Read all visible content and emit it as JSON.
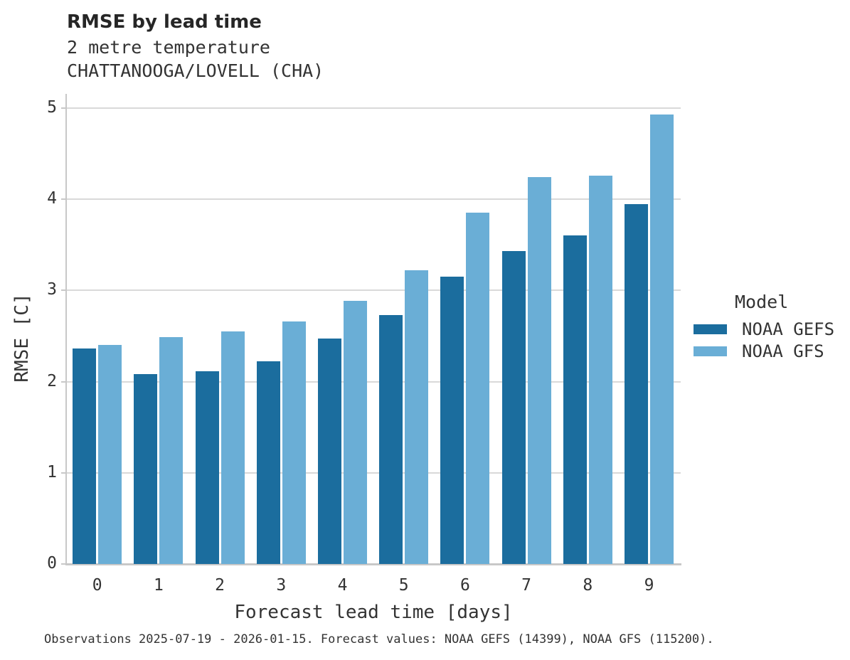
{
  "header": {
    "title": "RMSE by lead time",
    "subtitle1": "2 metre temperature",
    "subtitle2": "CHATTANOOGA/LOVELL (CHA)"
  },
  "footer": {
    "note": "Observations 2025-07-19 - 2026-01-15. Forecast values: NOAA GEFS (14399), NOAA GFS (115200)."
  },
  "legend": {
    "title": "Model",
    "entries": [
      {
        "label": "NOAA GEFS",
        "color": "#1b6d9e"
      },
      {
        "label": "NOAA GFS",
        "color": "#6aaed6"
      }
    ]
  },
  "colors": {
    "gefs_bar": "#1b6d9e",
    "gfs_bar": "#6aaed6",
    "gridline": "#d9d9d9",
    "axis": "#c8c8c8",
    "text": "#333333"
  },
  "chart_data": {
    "type": "bar",
    "title": "RMSE by lead time",
    "subtitle": [
      "2 metre temperature",
      "CHATTANOOGA/LOVELL (CHA)"
    ],
    "categories": [
      "0",
      "1",
      "2",
      "3",
      "4",
      "5",
      "6",
      "7",
      "8",
      "9"
    ],
    "series": [
      {
        "name": "NOAA GEFS",
        "color": "#1b6d9e",
        "values": [
          2.36,
          2.08,
          2.11,
          2.22,
          2.47,
          2.73,
          3.15,
          3.43,
          3.6,
          3.95
        ]
      },
      {
        "name": "NOAA GFS",
        "color": "#6aaed6",
        "values": [
          2.4,
          2.49,
          2.55,
          2.66,
          2.89,
          3.22,
          3.85,
          4.24,
          4.26,
          4.93
        ]
      }
    ],
    "xlabel": "Forecast lead time [days]",
    "ylabel": "RMSE [C]",
    "ylim": [
      0,
      5
    ],
    "yticks": [
      0,
      1,
      2,
      3,
      4,
      5
    ],
    "grid": true,
    "legend_title": "Model",
    "legend_position": "right",
    "caption": "Observations 2025-07-19 - 2026-01-15. Forecast values: NOAA GEFS (14399), NOAA GFS (115200)."
  }
}
